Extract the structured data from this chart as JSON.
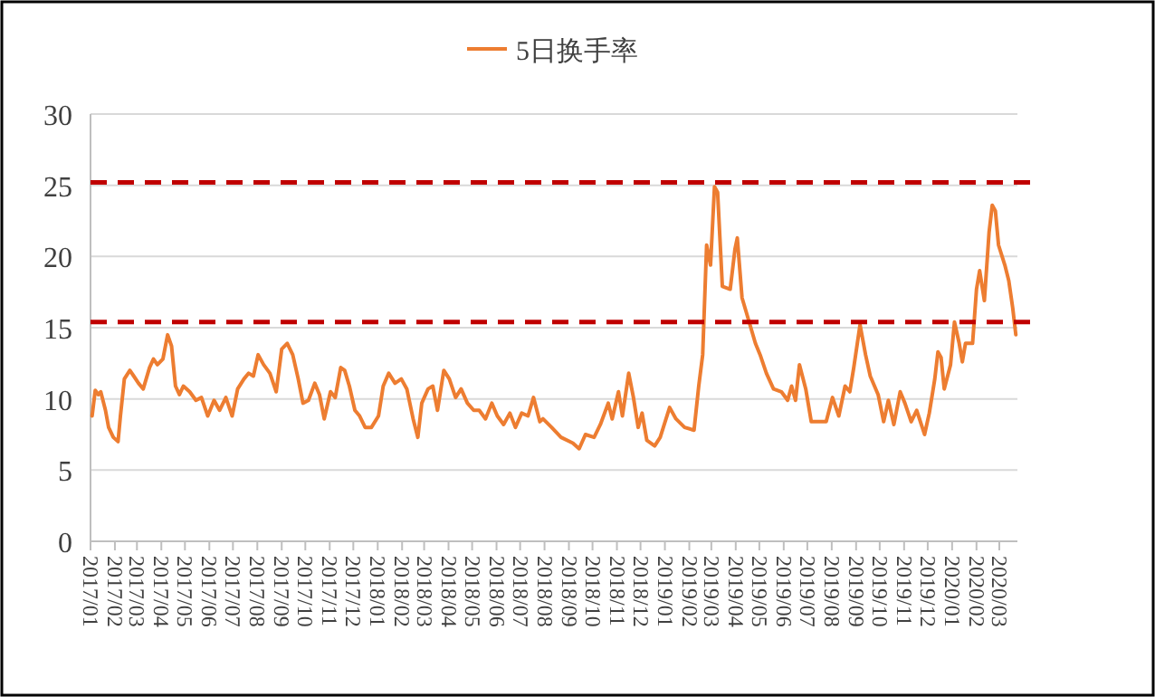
{
  "chart_data": {
    "type": "line",
    "legend": "top",
    "grid": "y",
    "line_style": "solid",
    "series": [
      {
        "name": "5日换手率",
        "color": "#ed7d31",
        "x": [
          "2017-01-03",
          "2017-01-07",
          "2017-01-11",
          "2017-01-14",
          "2017-01-20",
          "2017-01-24",
          "2017-01-30",
          "2017-02-05",
          "2017-02-08",
          "2017-02-13",
          "2017-02-20",
          "2017-02-25",
          "2017-03-03",
          "2017-03-09",
          "2017-03-17",
          "2017-03-22",
          "2017-03-27",
          "2017-04-03",
          "2017-04-09",
          "2017-04-14",
          "2017-04-19",
          "2017-04-24",
          "2017-04-29",
          "2017-05-07",
          "2017-05-15",
          "2017-05-22",
          "2017-05-30",
          "2017-06-07",
          "2017-06-14",
          "2017-06-22",
          "2017-06-30",
          "2017-07-07",
          "2017-07-15",
          "2017-07-21",
          "2017-07-27",
          "2017-08-02",
          "2017-08-09",
          "2017-08-17",
          "2017-08-25",
          "2017-09-01",
          "2017-09-08",
          "2017-09-15",
          "2017-09-22",
          "2017-09-28",
          "2017-10-05",
          "2017-10-13",
          "2017-10-19",
          "2017-10-25",
          "2017-11-02",
          "2017-11-08",
          "2017-11-15",
          "2017-11-20",
          "2017-11-26",
          "2017-12-03",
          "2017-12-09",
          "2017-12-16",
          "2017-12-24",
          "2018-01-02",
          "2018-01-08",
          "2018-01-15",
          "2018-01-23",
          "2018-01-31",
          "2018-02-07",
          "2018-02-15",
          "2018-02-21",
          "2018-02-26",
          "2018-03-06",
          "2018-03-12",
          "2018-03-18",
          "2018-03-26",
          "2018-04-02",
          "2018-04-10",
          "2018-04-17",
          "2018-04-25",
          "2018-05-03",
          "2018-05-10",
          "2018-05-18",
          "2018-05-26",
          "2018-06-02",
          "2018-06-10",
          "2018-06-18",
          "2018-06-25",
          "2018-07-03",
          "2018-07-11",
          "2018-07-18",
          "2018-07-26",
          "2018-07-30",
          "2018-08-10",
          "2018-08-22",
          "2018-09-06",
          "2018-09-14",
          "2018-09-22",
          "2018-10-03",
          "2018-10-11",
          "2018-10-21",
          "2018-10-26",
          "2018-11-03",
          "2018-11-08",
          "2018-11-16",
          "2018-11-22",
          "2018-11-28",
          "2018-12-03",
          "2018-12-09",
          "2018-12-19",
          "2018-12-26",
          "2019-01-07",
          "2019-01-15",
          "2019-01-26",
          "2019-02-07",
          "2019-02-13",
          "2019-02-18",
          "2019-02-23",
          "2019-02-28",
          "2019-03-05",
          "2019-03-09",
          "2019-03-15",
          "2019-03-25",
          "2019-03-31",
          "2019-04-03",
          "2019-04-09",
          "2019-04-17",
          "2019-04-26",
          "2019-05-02",
          "2019-05-10",
          "2019-05-19",
          "2019-05-29",
          "2019-06-06",
          "2019-06-11",
          "2019-06-16",
          "2019-06-21",
          "2019-06-29",
          "2019-07-06",
          "2019-07-14",
          "2019-07-25",
          "2019-08-02",
          "2019-08-10",
          "2019-08-18",
          "2019-08-24",
          "2019-08-29",
          "2019-09-06",
          "2019-09-13",
          "2019-09-19",
          "2019-09-29",
          "2019-10-06",
          "2019-10-12",
          "2019-10-19",
          "2019-10-27",
          "2019-11-02",
          "2019-11-10",
          "2019-11-17",
          "2019-11-27",
          "2019-12-03",
          "2019-12-10",
          "2019-12-14",
          "2019-12-18",
          "2019-12-22",
          "2019-12-30",
          "2020-01-04",
          "2020-01-10",
          "2020-01-14",
          "2020-01-18",
          "2020-01-27",
          "2020-02-01",
          "2020-02-05",
          "2020-02-11",
          "2020-02-17",
          "2020-02-21",
          "2020-02-25",
          "2020-02-29",
          "2020-03-08",
          "2020-03-13",
          "2020-03-18",
          "2020-03-22"
        ],
        "values": [
          8.8,
          10.6,
          10.3,
          10.5,
          9.2,
          8.0,
          7.3,
          7.0,
          8.8,
          11.4,
          12.0,
          11.6,
          11.1,
          10.7,
          12.2,
          12.8,
          12.4,
          12.8,
          14.5,
          13.7,
          10.9,
          10.3,
          10.9,
          10.5,
          9.9,
          10.1,
          8.8,
          9.9,
          9.2,
          10.1,
          8.8,
          10.7,
          11.4,
          11.8,
          11.6,
          13.1,
          12.4,
          11.8,
          10.5,
          13.5,
          13.9,
          13.1,
          11.4,
          9.7,
          9.9,
          11.1,
          10.3,
          8.6,
          10.5,
          10.1,
          12.2,
          12.0,
          10.9,
          9.2,
          8.8,
          8.0,
          8.0,
          8.8,
          10.9,
          11.8,
          11.1,
          11.4,
          10.7,
          8.6,
          7.3,
          9.7,
          10.7,
          10.9,
          9.2,
          12.0,
          11.4,
          10.1,
          10.7,
          9.7,
          9.2,
          9.2,
          8.6,
          9.7,
          8.8,
          8.2,
          9.0,
          8.0,
          9.0,
          8.8,
          10.1,
          8.4,
          8.6,
          8.0,
          7.3,
          6.9,
          6.5,
          7.5,
          7.3,
          8.2,
          9.7,
          8.6,
          10.5,
          8.8,
          11.8,
          10.1,
          8.0,
          9.0,
          7.1,
          6.7,
          7.3,
          9.4,
          8.6,
          8.0,
          7.8,
          10.9,
          13.1,
          20.8,
          19.4,
          24.9,
          24.5,
          17.9,
          17.7,
          20.5,
          21.3,
          17.1,
          15.6,
          13.9,
          13.1,
          11.8,
          10.7,
          10.5,
          9.9,
          10.9,
          9.9,
          12.4,
          10.7,
          8.4,
          8.4,
          8.4,
          10.1,
          8.8,
          10.9,
          10.5,
          12.2,
          15.2,
          13.1,
          11.6,
          10.3,
          8.4,
          9.9,
          8.2,
          10.5,
          9.7,
          8.4,
          9.2,
          7.5,
          9.0,
          11.4,
          13.3,
          12.9,
          10.7,
          12.4,
          15.4,
          13.9,
          12.6,
          13.9,
          13.9,
          17.7,
          19.0,
          16.9,
          21.7,
          23.6,
          23.2,
          20.8,
          19.4,
          18.3,
          16.4,
          14.5
        ]
      }
    ],
    "xlim": [
      "2017-01-01",
      "2020-03-24"
    ],
    "xticks": [
      {
        "value": "2017-01",
        "label": "2017/01"
      },
      {
        "value": "2017-02",
        "label": "2017/02"
      },
      {
        "value": "2017-03",
        "label": "2017/03"
      },
      {
        "value": "2017-04",
        "label": "2017/04"
      },
      {
        "value": "2017-05",
        "label": "2017/05"
      },
      {
        "value": "2017-06",
        "label": "2017/06"
      },
      {
        "value": "2017-07",
        "label": "2017/07"
      },
      {
        "value": "2017-08",
        "label": "2017/08"
      },
      {
        "value": "2017-09",
        "label": "2017/09"
      },
      {
        "value": "2017-10",
        "label": "2017/10"
      },
      {
        "value": "2017-11",
        "label": "2017/11"
      },
      {
        "value": "2017-12",
        "label": "2017/12"
      },
      {
        "value": "2018-01",
        "label": "2018/01"
      },
      {
        "value": "2018-02",
        "label": "2018/02"
      },
      {
        "value": "2018-03",
        "label": "2018/03"
      },
      {
        "value": "2018-04",
        "label": "2018/04"
      },
      {
        "value": "2018-05",
        "label": "2018/05"
      },
      {
        "value": "2018-06",
        "label": "2018/06"
      },
      {
        "value": "2018-07",
        "label": "2018/07"
      },
      {
        "value": "2018-08",
        "label": "2018/08"
      },
      {
        "value": "2018-09",
        "label": "2018/09"
      },
      {
        "value": "2018-10",
        "label": "2018/10"
      },
      {
        "value": "2018-11",
        "label": "2018/11"
      },
      {
        "value": "2018-12",
        "label": "2018/12"
      },
      {
        "value": "2019-01",
        "label": "2019/01"
      },
      {
        "value": "2019-02",
        "label": "2019/02"
      },
      {
        "value": "2019-03",
        "label": "2019/03"
      },
      {
        "value": "2019-04",
        "label": "2019/04"
      },
      {
        "value": "2019-05",
        "label": "2019/05"
      },
      {
        "value": "2019-06",
        "label": "2019/06"
      },
      {
        "value": "2019-07",
        "label": "2019/07"
      },
      {
        "value": "2019-08",
        "label": "2019/08"
      },
      {
        "value": "2019-09",
        "label": "2019/09"
      },
      {
        "value": "2019-10",
        "label": "2019/10"
      },
      {
        "value": "2019-11",
        "label": "2019/11"
      },
      {
        "value": "2019-12",
        "label": "2019/12"
      },
      {
        "value": "2020-01",
        "label": "2020/01"
      },
      {
        "value": "2020-02",
        "label": "2020/02"
      },
      {
        "value": "2020-03",
        "label": "2020/03"
      }
    ],
    "ylim": [
      0,
      30
    ],
    "yticks": [
      0,
      5,
      10,
      15,
      20,
      25,
      30
    ],
    "ref_lines": [
      {
        "axis": "y",
        "value": 15.4,
        "color": "#c00000",
        "line_style": "dashed"
      },
      {
        "axis": "y",
        "value": 25.2,
        "color": "#c00000",
        "line_style": "dashed"
      }
    ]
  }
}
